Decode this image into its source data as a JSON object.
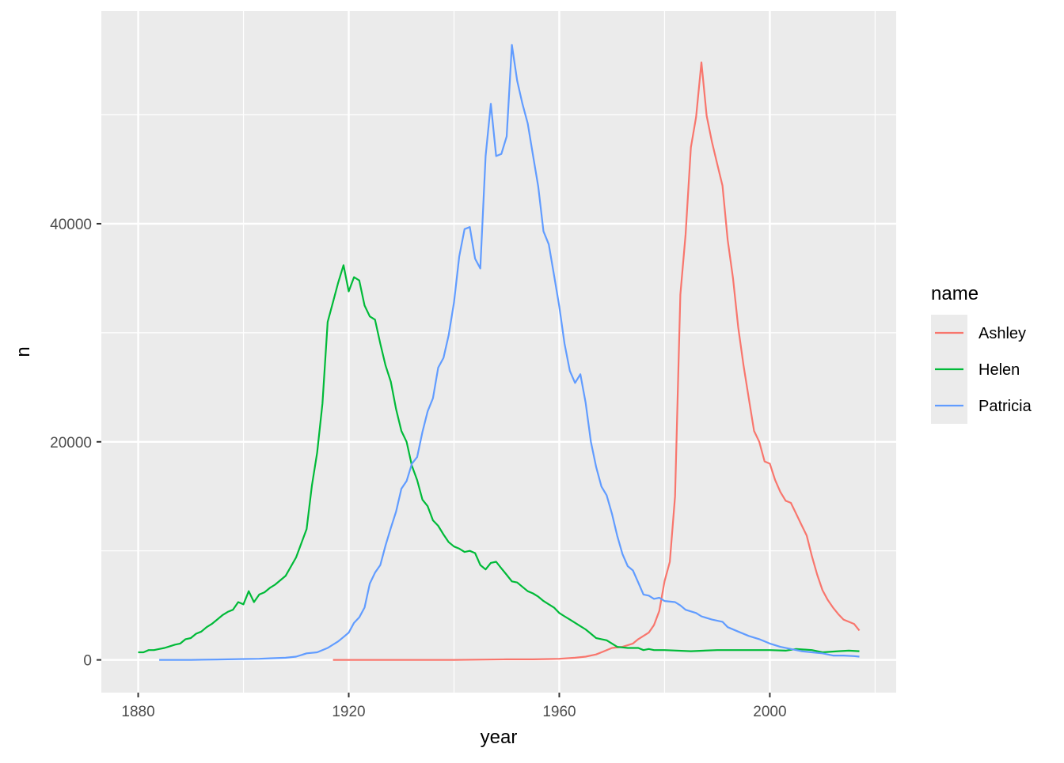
{
  "chart_data": {
    "type": "line",
    "xlabel": "year",
    "ylabel": "n",
    "xlim": [
      1873,
      2024
    ],
    "ylim": [
      -3000,
      59500
    ],
    "x_ticks": [
      1880,
      1920,
      1960,
      2000
    ],
    "y_ticks": [
      0,
      20000,
      40000
    ],
    "x_ticks_labels": [
      "1880",
      "1920",
      "1960",
      "2000"
    ],
    "y_ticks_labels": [
      "0",
      "20000",
      "40000"
    ],
    "grid": true,
    "legend": {
      "title": "name",
      "placement": "right"
    },
    "series": [
      {
        "name": "Ashley",
        "color": "#F8766D",
        "points": [
          [
            1917,
            0
          ],
          [
            1920,
            0
          ],
          [
            1930,
            0
          ],
          [
            1940,
            0
          ],
          [
            1950,
            50
          ],
          [
            1955,
            50
          ],
          [
            1958,
            80
          ],
          [
            1960,
            100
          ],
          [
            1963,
            200
          ],
          [
            1965,
            300
          ],
          [
            1967,
            500
          ],
          [
            1968,
            700
          ],
          [
            1970,
            1100
          ],
          [
            1972,
            1200
          ],
          [
            1974,
            1500
          ],
          [
            1975,
            1900
          ],
          [
            1977,
            2500
          ],
          [
            1978,
            3200
          ],
          [
            1979,
            4500
          ],
          [
            1980,
            7200
          ],
          [
            1981,
            9000
          ],
          [
            1982,
            15000
          ],
          [
            1983,
            33500
          ],
          [
            1984,
            39000
          ],
          [
            1985,
            47000
          ],
          [
            1986,
            49800
          ],
          [
            1987,
            54800
          ],
          [
            1988,
            49900
          ],
          [
            1989,
            47500
          ],
          [
            1990,
            45500
          ],
          [
            1991,
            43500
          ],
          [
            1992,
            38500
          ],
          [
            1993,
            35000
          ],
          [
            1994,
            30500
          ],
          [
            1995,
            27000
          ],
          [
            1996,
            24000
          ],
          [
            1997,
            21000
          ],
          [
            1998,
            20000
          ],
          [
            1999,
            18200
          ],
          [
            2000,
            18000
          ],
          [
            2001,
            16500
          ],
          [
            2002,
            15400
          ],
          [
            2003,
            14600
          ],
          [
            2004,
            14400
          ],
          [
            2005,
            13400
          ],
          [
            2006,
            12400
          ],
          [
            2007,
            11400
          ],
          [
            2008,
            9500
          ],
          [
            2009,
            7800
          ],
          [
            2010,
            6400
          ],
          [
            2011,
            5500
          ],
          [
            2012,
            4800
          ],
          [
            2013,
            4200
          ],
          [
            2014,
            3700
          ],
          [
            2015,
            3500
          ],
          [
            2016,
            3300
          ],
          [
            2017,
            2700
          ]
        ]
      },
      {
        "name": "Helen",
        "color": "#00BA38",
        "points": [
          [
            1880,
            700
          ],
          [
            1881,
            700
          ],
          [
            1882,
            900
          ],
          [
            1883,
            900
          ],
          [
            1884,
            1000
          ],
          [
            1885,
            1100
          ],
          [
            1886,
            1250
          ],
          [
            1887,
            1400
          ],
          [
            1888,
            1500
          ],
          [
            1889,
            1900
          ],
          [
            1890,
            2000
          ],
          [
            1891,
            2400
          ],
          [
            1892,
            2600
          ],
          [
            1893,
            3000
          ],
          [
            1894,
            3300
          ],
          [
            1895,
            3700
          ],
          [
            1896,
            4100
          ],
          [
            1897,
            4400
          ],
          [
            1898,
            4600
          ],
          [
            1899,
            5300
          ],
          [
            1900,
            5100
          ],
          [
            1901,
            6300
          ],
          [
            1902,
            5300
          ],
          [
            1903,
            6000
          ],
          [
            1904,
            6200
          ],
          [
            1905,
            6600
          ],
          [
            1906,
            6900
          ],
          [
            1908,
            7700
          ],
          [
            1910,
            9400
          ],
          [
            1912,
            12000
          ],
          [
            1913,
            16000
          ],
          [
            1914,
            19000
          ],
          [
            1915,
            23500
          ],
          [
            1916,
            31000
          ],
          [
            1917,
            32800
          ],
          [
            1918,
            34600
          ],
          [
            1919,
            36200
          ],
          [
            1920,
            33800
          ],
          [
            1921,
            35100
          ],
          [
            1922,
            34800
          ],
          [
            1923,
            32500
          ],
          [
            1924,
            31500
          ],
          [
            1925,
            31200
          ],
          [
            1926,
            29000
          ],
          [
            1927,
            27000
          ],
          [
            1928,
            25500
          ],
          [
            1929,
            23000
          ],
          [
            1930,
            21000
          ],
          [
            1931,
            20000
          ],
          [
            1932,
            17800
          ],
          [
            1933,
            16500
          ],
          [
            1934,
            14700
          ],
          [
            1935,
            14100
          ],
          [
            1936,
            12800
          ],
          [
            1937,
            12300
          ],
          [
            1938,
            11500
          ],
          [
            1939,
            10800
          ],
          [
            1940,
            10400
          ],
          [
            1941,
            10200
          ],
          [
            1942,
            9900
          ],
          [
            1943,
            10000
          ],
          [
            1944,
            9800
          ],
          [
            1945,
            8700
          ],
          [
            1946,
            8300
          ],
          [
            1947,
            8900
          ],
          [
            1948,
            9000
          ],
          [
            1949,
            8400
          ],
          [
            1950,
            7800
          ],
          [
            1951,
            7200
          ],
          [
            1952,
            7100
          ],
          [
            1953,
            6700
          ],
          [
            1954,
            6300
          ],
          [
            1955,
            6100
          ],
          [
            1956,
            5800
          ],
          [
            1957,
            5400
          ],
          [
            1958,
            5100
          ],
          [
            1959,
            4800
          ],
          [
            1960,
            4300
          ],
          [
            1961,
            4000
          ],
          [
            1962,
            3700
          ],
          [
            1963,
            3400
          ],
          [
            1964,
            3100
          ],
          [
            1965,
            2800
          ],
          [
            1966,
            2400
          ],
          [
            1967,
            2000
          ],
          [
            1968,
            1900
          ],
          [
            1969,
            1800
          ],
          [
            1970,
            1500
          ],
          [
            1971,
            1200
          ],
          [
            1972,
            1150
          ],
          [
            1973,
            1100
          ],
          [
            1975,
            1100
          ],
          [
            1976,
            900
          ],
          [
            1977,
            1000
          ],
          [
            1978,
            900
          ],
          [
            1980,
            900
          ],
          [
            1985,
            800
          ],
          [
            1990,
            900
          ],
          [
            1995,
            900
          ],
          [
            2000,
            900
          ],
          [
            2003,
            850
          ],
          [
            2005,
            1000
          ],
          [
            2008,
            900
          ],
          [
            2010,
            700
          ],
          [
            2013,
            800
          ],
          [
            2015,
            850
          ],
          [
            2017,
            800
          ]
        ]
      },
      {
        "name": "Patricia",
        "color": "#619CFF",
        "points": [
          [
            1884,
            0
          ],
          [
            1890,
            0
          ],
          [
            1895,
            40
          ],
          [
            1900,
            80
          ],
          [
            1903,
            100
          ],
          [
            1905,
            150
          ],
          [
            1908,
            200
          ],
          [
            1910,
            300
          ],
          [
            1912,
            600
          ],
          [
            1914,
            700
          ],
          [
            1916,
            1100
          ],
          [
            1918,
            1700
          ],
          [
            1919,
            2100
          ],
          [
            1920,
            2500
          ],
          [
            1921,
            3400
          ],
          [
            1922,
            3900
          ],
          [
            1923,
            4800
          ],
          [
            1924,
            7000
          ],
          [
            1925,
            8000
          ],
          [
            1926,
            8700
          ],
          [
            1927,
            10500
          ],
          [
            1928,
            12100
          ],
          [
            1929,
            13600
          ],
          [
            1930,
            15700
          ],
          [
            1931,
            16400
          ],
          [
            1932,
            18000
          ],
          [
            1933,
            18600
          ],
          [
            1934,
            20900
          ],
          [
            1935,
            22800
          ],
          [
            1936,
            24000
          ],
          [
            1937,
            26800
          ],
          [
            1938,
            27700
          ],
          [
            1939,
            29800
          ],
          [
            1940,
            32800
          ],
          [
            1941,
            37000
          ],
          [
            1942,
            39500
          ],
          [
            1943,
            39700
          ],
          [
            1944,
            36800
          ],
          [
            1945,
            35900
          ],
          [
            1946,
            46200
          ],
          [
            1947,
            51000
          ],
          [
            1948,
            46200
          ],
          [
            1949,
            46400
          ],
          [
            1950,
            48000
          ],
          [
            1951,
            56400
          ],
          [
            1952,
            53100
          ],
          [
            1953,
            51000
          ],
          [
            1954,
            49200
          ],
          [
            1955,
            46300
          ],
          [
            1956,
            43400
          ],
          [
            1957,
            39300
          ],
          [
            1958,
            38100
          ],
          [
            1959,
            35300
          ],
          [
            1960,
            32400
          ],
          [
            1961,
            29000
          ],
          [
            1962,
            26500
          ],
          [
            1963,
            25400
          ],
          [
            1964,
            26200
          ],
          [
            1965,
            23600
          ],
          [
            1966,
            20000
          ],
          [
            1967,
            17700
          ],
          [
            1968,
            15900
          ],
          [
            1969,
            15100
          ],
          [
            1970,
            13400
          ],
          [
            1971,
            11400
          ],
          [
            1972,
            9700
          ],
          [
            1973,
            8600
          ],
          [
            1974,
            8200
          ],
          [
            1975,
            7100
          ],
          [
            1976,
            6000
          ],
          [
            1977,
            5900
          ],
          [
            1978,
            5600
          ],
          [
            1979,
            5700
          ],
          [
            1980,
            5400
          ],
          [
            1982,
            5300
          ],
          [
            1983,
            5000
          ],
          [
            1984,
            4600
          ],
          [
            1986,
            4300
          ],
          [
            1987,
            4000
          ],
          [
            1989,
            3700
          ],
          [
            1991,
            3500
          ],
          [
            1992,
            3000
          ],
          [
            1994,
            2600
          ],
          [
            1996,
            2200
          ],
          [
            1998,
            1900
          ],
          [
            2000,
            1500
          ],
          [
            2002,
            1200
          ],
          [
            2004,
            1000
          ],
          [
            2006,
            800
          ],
          [
            2008,
            700
          ],
          [
            2010,
            600
          ],
          [
            2012,
            400
          ],
          [
            2014,
            400
          ],
          [
            2016,
            350
          ],
          [
            2017,
            300
          ]
        ]
      }
    ]
  }
}
